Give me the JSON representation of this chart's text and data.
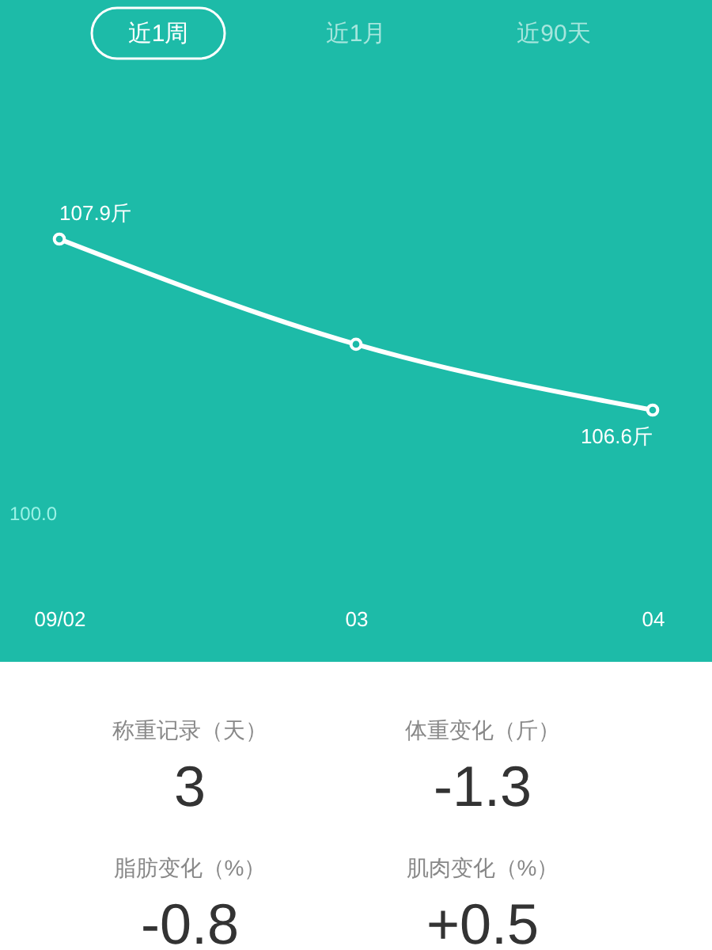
{
  "chart_data": [
    {
      "type": "other",
      "annotations": [
        "近1周",
        "近1月",
        "近90天"
      ]
    },
    {
      "type": "line",
      "categories": [
        "09/02",
        "03",
        "04"
      ],
      "values": [
        107.9,
        107.1,
        106.6
      ],
      "value_labels": [
        "107.9斤",
        null,
        "106.6斤"
      ],
      "color": "#ffffff",
      "marker": "circle",
      "tick_labels": "x",
      "annotations": [
        "100.0"
      ]
    },
    {
      "type": "other",
      "annotations": [
        "称重记录（天）",
        "3",
        "体重变化（斤）",
        "-1.3",
        "脂肪变化（%）",
        "-0.8",
        "肌肉变化（%）",
        "+0.5"
      ]
    }
  ]
}
